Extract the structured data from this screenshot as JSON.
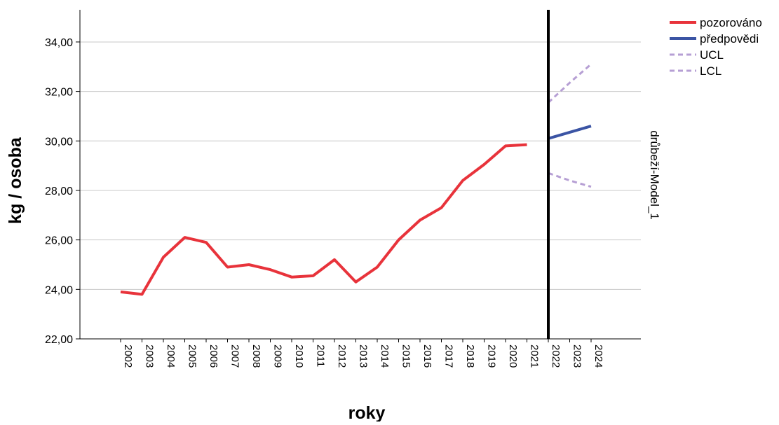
{
  "chart_data": {
    "type": "line",
    "xlabel": "roky",
    "ylabel": "kg / osoba",
    "panel_label": "drůbeží-Model_1",
    "categories": [
      "2002",
      "2003",
      "2004",
      "2005",
      "2006",
      "2007",
      "2008",
      "2009",
      "2010",
      "2011",
      "2012",
      "2013",
      "2014",
      "2015",
      "2016",
      "2017",
      "2018",
      "2019",
      "2020",
      "2021",
      "2022",
      "2023",
      "2024"
    ],
    "ylim": [
      22,
      35.3
    ],
    "yticks": [
      22,
      24,
      26,
      28,
      30,
      32,
      34
    ],
    "ytick_labels": [
      "22,00",
      "24,00",
      "26,00",
      "28,00",
      "30,00",
      "32,00",
      "34,00"
    ],
    "grid": true,
    "forecast_line_at": "2022",
    "legend_position": "top-right",
    "series": [
      {
        "name": "pozorováno",
        "color": "#e8333b",
        "style": "solid",
        "x": [
          "2002",
          "2003",
          "2004",
          "2005",
          "2006",
          "2007",
          "2008",
          "2009",
          "2010",
          "2011",
          "2012",
          "2013",
          "2014",
          "2015",
          "2016",
          "2017",
          "2018",
          "2019",
          "2020",
          "2021"
        ],
        "values": [
          23.9,
          23.8,
          25.3,
          26.1,
          25.9,
          24.9,
          25.0,
          24.8,
          24.5,
          24.55,
          25.2,
          24.3,
          24.9,
          26.0,
          26.8,
          27.3,
          28.4,
          29.05,
          29.8,
          29.85
        ]
      },
      {
        "name": "předpovědi",
        "color": "#3b54a4",
        "style": "solid",
        "x": [
          "2022",
          "2023",
          "2024"
        ],
        "values": [
          30.1,
          30.35,
          30.6
        ]
      },
      {
        "name": "UCL",
        "color": "#b69fd4",
        "style": "dashed",
        "x": [
          "2022",
          "2023",
          "2024"
        ],
        "values": [
          31.55,
          32.35,
          33.1
        ]
      },
      {
        "name": "LCL",
        "color": "#b69fd4",
        "style": "dashed",
        "x": [
          "2022",
          "2023",
          "2024"
        ],
        "values": [
          28.7,
          28.4,
          28.15
        ]
      }
    ]
  }
}
